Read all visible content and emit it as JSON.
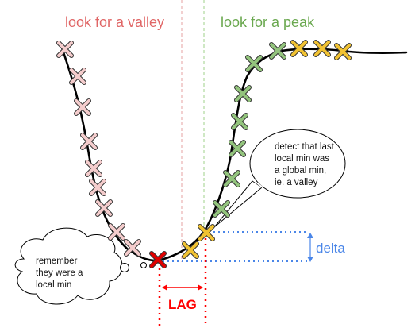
{
  "headings": {
    "valley": "look for a valley",
    "peak": "look for a peak"
  },
  "callouts": {
    "thought": [
      "remember",
      "they were a",
      "local min"
    ],
    "speech": [
      "detect that last",
      "local min was",
      "a global min,",
      "ie. a valley"
    ]
  },
  "measures": {
    "lag": "LAG",
    "delta": "delta"
  },
  "colors": {
    "valley_heading": "#e06666",
    "peak_heading": "#6aa84f",
    "valley_marker": "#f4cccc",
    "peak_marker": "#93c47d",
    "candidate_marker": "#f1c232",
    "detected_min_marker": "#e00000",
    "lag": "#ff0000",
    "delta": "#4a86e8",
    "curve": "#000000"
  }
}
